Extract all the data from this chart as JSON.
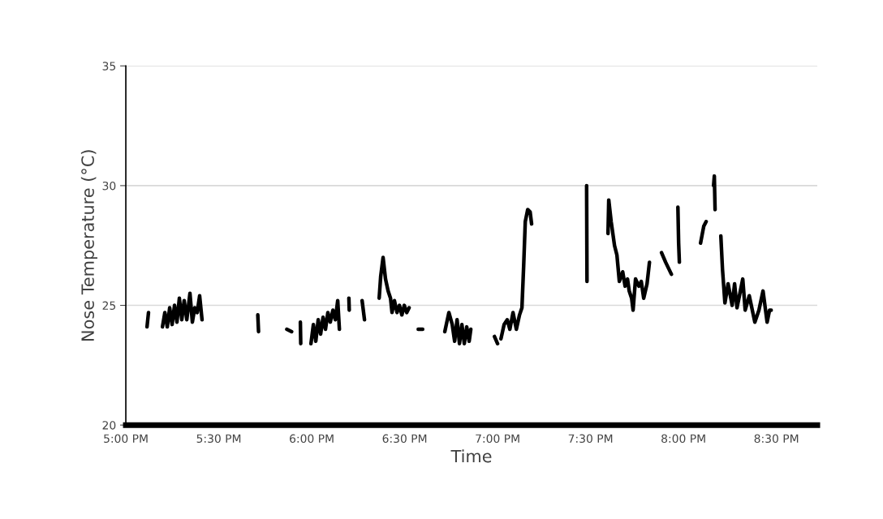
{
  "chart_data": {
    "type": "line",
    "xlabel": "Time",
    "ylabel": "Nose Temperature (°C)",
    "xlim": [
      17,
      20.72
    ],
    "ylim": [
      20,
      35
    ],
    "yticks": [
      20,
      25,
      30,
      35
    ],
    "xticks": [
      {
        "value": 17,
        "label": "5:00 PM"
      },
      {
        "value": 17.5,
        "label": "5:30 PM"
      },
      {
        "value": 18,
        "label": "6:00 PM"
      },
      {
        "value": 18.5,
        "label": "6:30 PM"
      },
      {
        "value": 19,
        "label": "7:00 PM"
      },
      {
        "value": 19.5,
        "label": "7:30 PM"
      },
      {
        "value": 20,
        "label": "8:00 PM"
      },
      {
        "value": 20.5,
        "label": "8:30 PM"
      }
    ],
    "grid": "y",
    "marker": "none",
    "line_style": "solid",
    "series": [
      {
        "color": "#000000",
        "x": [
          17.114,
          17.122,
          17.16,
          17.197,
          17.21,
          17.223,
          17.236,
          17.249,
          17.262,
          17.275,
          17.288,
          17.301,
          17.314,
          17.328,
          17.345,
          17.358,
          17.371,
          17.384,
          17.397,
          17.41,
          17.55,
          17.71,
          17.714,
          17.8,
          17.866,
          17.892,
          17.91,
          17.939,
          17.941,
          17.97,
          17.996,
          18.009,
          18.022,
          18.035,
          18.048,
          18.061,
          18.074,
          18.087,
          18.1,
          18.114,
          18.127,
          18.14,
          18.149,
          18.17,
          18.2,
          18.202,
          18.24,
          18.271,
          18.284,
          18.32,
          18.363,
          18.371,
          18.384,
          18.397,
          18.411,
          18.424,
          18.432,
          18.445,
          18.459,
          18.472,
          18.485,
          18.498,
          18.511,
          18.524,
          18.55,
          18.573,
          18.597,
          18.65,
          18.716,
          18.738,
          18.756,
          18.769,
          18.782,
          18.795,
          18.808,
          18.821,
          18.834,
          18.847,
          18.856,
          18.92,
          18.983,
          19.0,
          19.01,
          19.018,
          19.035,
          19.052,
          19.066,
          19.083,
          19.101,
          19.118,
          19.131,
          19.14,
          19.149,
          19.162,
          19.175,
          19.183,
          19.33,
          19.479,
          19.481,
          19.54,
          19.594,
          19.598,
          19.611,
          19.629,
          19.642,
          19.655,
          19.673,
          19.686,
          19.699,
          19.708,
          19.721,
          19.729,
          19.742,
          19.76,
          19.773,
          19.786,
          19.804,
          19.817,
          19.85,
          19.882,
          19.904,
          19.935,
          19.95,
          19.97,
          19.974,
          19.978,
          20.03,
          20.092,
          20.109,
          20.122,
          20.14,
          20.162,
          20.166,
          20.17,
          20.185,
          20.201,
          20.21,
          20.223,
          20.24,
          20.262,
          20.275,
          20.288,
          20.319,
          20.332,
          20.354,
          20.384,
          20.406,
          20.428,
          20.45,
          20.463,
          20.472
        ],
        "values": [
          24.1,
          24.7,
          null,
          24.1,
          24.7,
          24.1,
          24.9,
          24.2,
          25.0,
          24.3,
          25.3,
          24.4,
          25.2,
          24.4,
          25.5,
          24.3,
          24.9,
          24.7,
          25.4,
          24.4,
          null,
          24.6,
          23.9,
          null,
          24.0,
          23.9,
          null,
          24.3,
          23.4,
          null,
          23.4,
          24.2,
          23.5,
          24.4,
          23.8,
          24.5,
          24.0,
          24.7,
          24.3,
          24.8,
          24.4,
          25.2,
          24.0,
          null,
          25.3,
          24.8,
          null,
          25.2,
          24.4,
          null,
          25.3,
          26.2,
          27.0,
          26.1,
          25.6,
          25.3,
          24.7,
          25.2,
          24.7,
          25.0,
          24.6,
          25.0,
          24.7,
          24.9,
          null,
          24.0,
          24.0,
          null,
          23.9,
          24.7,
          24.2,
          23.5,
          24.4,
          23.4,
          24.2,
          23.4,
          24.1,
          23.5,
          24.0,
          null,
          23.7,
          23.4,
          null,
          23.6,
          24.2,
          24.4,
          24.0,
          24.7,
          24.0,
          24.6,
          24.9,
          26.6,
          28.5,
          29.0,
          28.9,
          28.4,
          null,
          30.0,
          26.0,
          null,
          28.0,
          29.4,
          28.5,
          27.5,
          27.1,
          26.0,
          26.4,
          25.8,
          26.1,
          25.6,
          25.3,
          24.8,
          26.1,
          25.8,
          26.0,
          25.3,
          25.9,
          26.8,
          null,
          27.2,
          26.8,
          26.3,
          null,
          29.1,
          27.6,
          26.8,
          null,
          27.6,
          28.3,
          28.5,
          null,
          30.0,
          30.4,
          29.0,
          null,
          27.9,
          26.5,
          25.1,
          25.9,
          25.0,
          25.9,
          24.9,
          26.1,
          24.8,
          25.4,
          24.3,
          24.8,
          25.6,
          24.3,
          24.8,
          24.8
        ]
      }
    ]
  }
}
